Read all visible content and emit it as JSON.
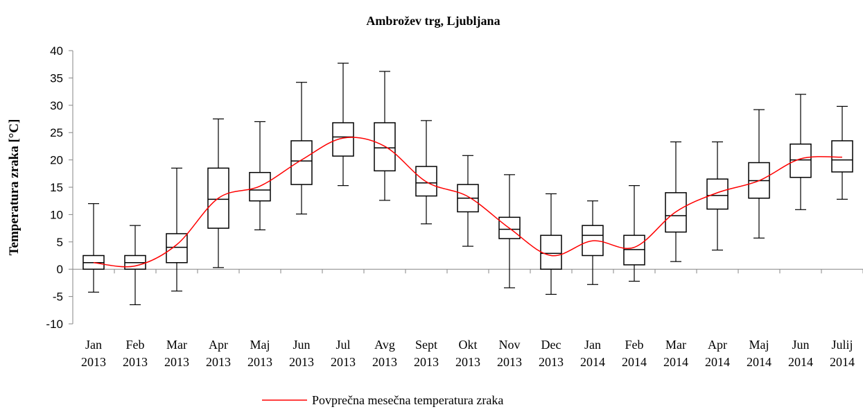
{
  "chart_data": {
    "type": "box",
    "title": "Ambrožev  trg, Ljubljana",
    "y_label": "Temperatura  zraka  [°C]",
    "categories": [
      [
        "Jan",
        "2013"
      ],
      [
        "Feb",
        "2013"
      ],
      [
        "Mar",
        "2013"
      ],
      [
        "Apr",
        "2013"
      ],
      [
        "Maj",
        "2013"
      ],
      [
        "Jun",
        "2013"
      ],
      [
        "Jul",
        "2013"
      ],
      [
        "Avg",
        "2013"
      ],
      [
        "Sept",
        "2013"
      ],
      [
        "Okt",
        "2013"
      ],
      [
        "Nov",
        "2013"
      ],
      [
        "Dec",
        "2013"
      ],
      [
        "Jan",
        "2014"
      ],
      [
        "Feb",
        "2014"
      ],
      [
        "Mar",
        "2014"
      ],
      [
        "Apr",
        "2014"
      ],
      [
        "Maj",
        "2014"
      ],
      [
        "Jun",
        "2014"
      ],
      [
        "Julij",
        "2014"
      ]
    ],
    "boxes": {
      "min": [
        -4.2,
        -6.5,
        -4,
        0.3,
        7.2,
        10.1,
        15.3,
        12.6,
        8.3,
        4.2,
        -3.4,
        -4.6,
        -2.8,
        -2.2,
        1.4,
        3.5,
        5.7,
        10.9,
        12.8
      ],
      "q1": [
        0,
        0,
        1.2,
        7.5,
        12.5,
        15.5,
        20.7,
        18,
        13.4,
        10.5,
        5.6,
        0,
        2.5,
        0.8,
        6.8,
        11,
        13,
        16.8,
        17.8
      ],
      "median": [
        1.2,
        1.2,
        4,
        12.8,
        14.5,
        19.8,
        24.2,
        22.2,
        15.8,
        13,
        7.3,
        2.9,
        6.2,
        3.6,
        9.8,
        13.5,
        16.2,
        20,
        20
      ],
      "q3": [
        2.5,
        2.5,
        6.5,
        18.5,
        17.7,
        23.5,
        26.8,
        26.8,
        18.8,
        15.5,
        9.5,
        6.2,
        8,
        6.2,
        14,
        16.5,
        19.5,
        22.9,
        23.5
      ],
      "max": [
        12,
        8,
        18.5,
        27.5,
        27,
        34.2,
        37.7,
        36.2,
        27.2,
        20.8,
        17.3,
        13.8,
        12.5,
        15.3,
        23.3,
        23.3,
        29.2,
        32,
        29.8
      ],
      "color": "#000000"
    },
    "series": [
      {
        "name": "Povprečna mesečna temperatura zraka",
        "color": "#ff0000",
        "values": [
          1.2,
          0.6,
          4.5,
          13,
          15.2,
          20,
          24,
          22.5,
          16,
          13.3,
          7.5,
          2.5,
          5.2,
          4,
          10.5,
          14,
          16.2,
          20.2,
          20.5
        ]
      }
    ],
    "ylim": [
      -10,
      40
    ],
    "yticks": [
      -10,
      -5,
      0,
      5,
      10,
      15,
      20,
      25,
      30,
      35,
      40
    ],
    "legend": "bottom"
  }
}
